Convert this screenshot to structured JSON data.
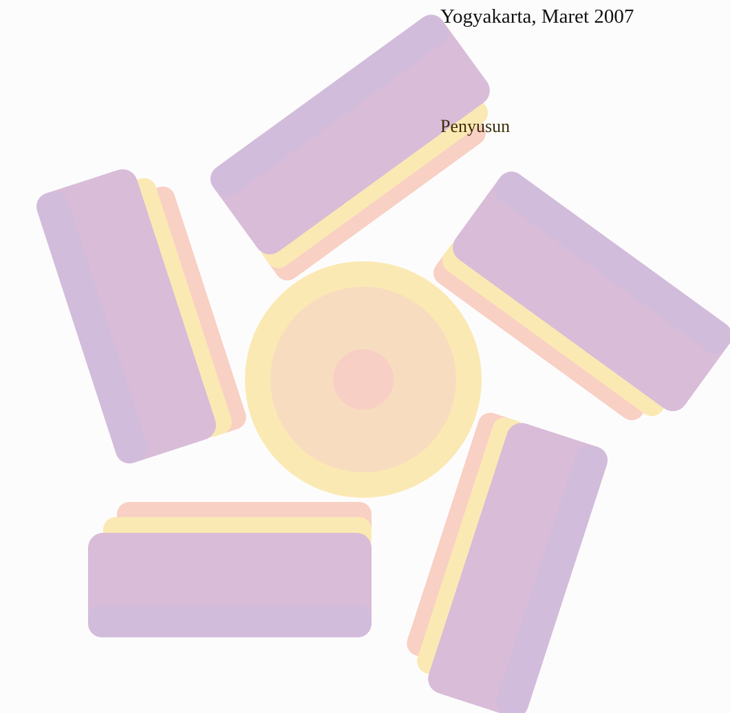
{
  "closing": {
    "place_date": "Yogyakarta, Maret 2007",
    "signer_label": "Penyusun"
  }
}
